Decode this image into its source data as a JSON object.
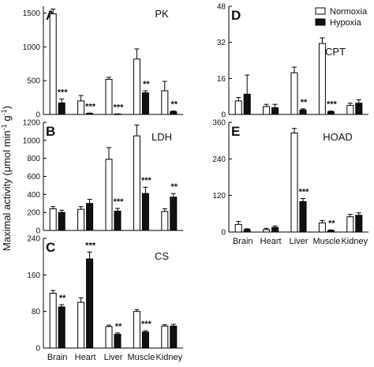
{
  "ylabel_parts": {
    "main": "Maximal activity (μmol min",
    "sup1": "-1",
    "mid": " g",
    "sup2": "-1",
    "end": ")"
  },
  "legend": [
    {
      "label": "Normoxia",
      "color": "#ffffff"
    },
    {
      "label": "Hypoxia",
      "color": "#111111"
    }
  ],
  "chart_data": [
    {
      "panel": "A",
      "title": "PK",
      "type": "bar",
      "categories": [
        "Brain",
        "Heart",
        "Liver",
        "Muscle",
        "Kidney"
      ],
      "show_category_labels": false,
      "ylim": [
        0,
        1600
      ],
      "yticks": [
        "0",
        "500",
        "1000",
        "1500"
      ],
      "ytick_values": [
        0,
        500,
        1000,
        1500
      ],
      "series": [
        {
          "name": "Normoxia",
          "values": [
            1490,
            200,
            520,
            820,
            350
          ],
          "errors": [
            70,
            80,
            30,
            150,
            140
          ]
        },
        {
          "name": "Hypoxia",
          "values": [
            170,
            15,
            5,
            320,
            40
          ],
          "errors": [
            60,
            5,
            3,
            30,
            10
          ]
        }
      ],
      "significance": [
        "***",
        "***",
        "***",
        "**",
        "**"
      ]
    },
    {
      "panel": "B",
      "title": "LDH",
      "type": "bar",
      "categories": [
        "Brain",
        "Heart",
        "Liver",
        "Muscle",
        "Kidney"
      ],
      "show_category_labels": false,
      "ylim": [
        0,
        1200
      ],
      "yticks": [
        "0",
        "200",
        "400",
        "600",
        "800",
        "1000",
        "1200"
      ],
      "ytick_values": [
        0,
        200,
        400,
        600,
        800,
        1000,
        1200
      ],
      "series": [
        {
          "name": "Normoxia",
          "values": [
            240,
            235,
            790,
            1050,
            210
          ],
          "errors": [
            25,
            30,
            130,
            120,
            30
          ]
        },
        {
          "name": "Hypoxia",
          "values": [
            200,
            300,
            215,
            410,
            370
          ],
          "errors": [
            25,
            45,
            30,
            70,
            40
          ]
        }
      ],
      "significance": [
        "",
        "",
        "***",
        "***",
        "**"
      ]
    },
    {
      "panel": "C",
      "title": "CS",
      "type": "bar",
      "categories": [
        "Brain",
        "Heart",
        "Liver",
        "Muscle",
        "Kidney"
      ],
      "show_category_labels": true,
      "ylim": [
        0,
        240
      ],
      "yticks": [
        "0",
        "80",
        "160",
        "240"
      ],
      "ytick_values": [
        0,
        80,
        160,
        240
      ],
      "series": [
        {
          "name": "Normoxia",
          "values": [
            120,
            100,
            47,
            80,
            48
          ],
          "errors": [
            6,
            10,
            3,
            4,
            3
          ]
        },
        {
          "name": "Hypoxia",
          "values": [
            90,
            195,
            30,
            35,
            48
          ],
          "errors": [
            5,
            15,
            3,
            3,
            4
          ]
        }
      ],
      "significance": [
        "**",
        "***",
        "**",
        "***",
        ""
      ]
    },
    {
      "panel": "D",
      "title": "CPT",
      "type": "bar",
      "categories": [
        "Brain",
        "Heart",
        "Liver",
        "Muscle",
        "Kidney"
      ],
      "show_category_labels": false,
      "ylim": [
        0,
        48
      ],
      "yticks": [
        "0",
        "16",
        "32",
        "48"
      ],
      "ytick_values": [
        0,
        16,
        32,
        48
      ],
      "series": [
        {
          "name": "Normoxia",
          "values": [
            6,
            3.5,
            18.5,
            31.5,
            4
          ],
          "errors": [
            1.5,
            1,
            2.5,
            2.5,
            1
          ]
        },
        {
          "name": "Hypoxia",
          "values": [
            9,
            3,
            2,
            1.2,
            5
          ],
          "errors": [
            8.5,
            1.5,
            0.5,
            0.3,
            1.5
          ]
        }
      ],
      "significance": [
        "",
        "",
        "**",
        "***",
        ""
      ]
    },
    {
      "panel": "E",
      "title": "HOAD",
      "type": "bar",
      "categories": [
        "Brain",
        "Heart",
        "Liver",
        "Muscle",
        "Kidney"
      ],
      "show_category_labels": true,
      "ylim": [
        0,
        360
      ],
      "yticks": [
        "0",
        "120",
        "240",
        "360"
      ],
      "ytick_values": [
        0,
        120,
        240,
        360
      ],
      "series": [
        {
          "name": "Normoxia",
          "values": [
            25,
            8,
            325,
            30,
            50
          ],
          "errors": [
            10,
            4,
            15,
            8,
            8
          ]
        },
        {
          "name": "Hypoxia",
          "values": [
            8,
            15,
            100,
            5,
            55
          ],
          "errors": [
            3,
            5,
            10,
            2,
            8
          ]
        }
      ],
      "significance": [
        "",
        "",
        "***",
        "**",
        ""
      ]
    }
  ]
}
